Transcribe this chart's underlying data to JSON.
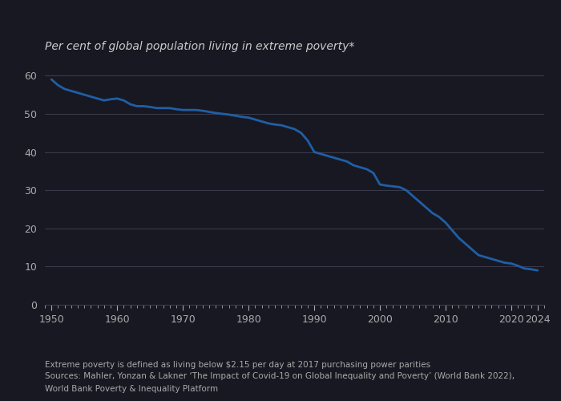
{
  "title": "Per cent of global population living in extreme poverty*",
  "ylim": [
    0,
    63
  ],
  "yticks": [
    0,
    10,
    20,
    30,
    40,
    50,
    60
  ],
  "xlim": [
    1949,
    2025
  ],
  "xticks": [
    1950,
    1960,
    1970,
    1980,
    1990,
    2000,
    2010,
    2020,
    2024
  ],
  "xtick_labels": [
    "1950",
    "1960",
    "1970",
    "1980",
    "1990",
    "2000",
    "2010",
    "2020",
    "2024"
  ],
  "line_color": "#1f5fa6",
  "line_width": 2.0,
  "background_color": "#181822",
  "grid_color": "#3a3a4a",
  "text_color": "#aaaaaa",
  "title_color": "#cccccc",
  "title_fontsize": 10,
  "footnote_fontsize": 7.5,
  "footnote1": "Extreme poverty is defined as living below $2.15 per day at 2017 purchasing power parities",
  "footnote2": "Sources: Mahler, Yonzan & Lakner ‘The Impact of Covid-19 on Global Inequality and Poverty’ (World Bank 2022),",
  "footnote3": "World Bank Poverty & Inequality Platform",
  "years": [
    1950,
    1951,
    1952,
    1953,
    1954,
    1955,
    1956,
    1957,
    1958,
    1959,
    1960,
    1961,
    1962,
    1963,
    1964,
    1965,
    1966,
    1967,
    1968,
    1969,
    1970,
    1971,
    1972,
    1973,
    1974,
    1975,
    1976,
    1977,
    1978,
    1979,
    1980,
    1981,
    1982,
    1983,
    1984,
    1985,
    1986,
    1987,
    1988,
    1989,
    1990,
    1991,
    1992,
    1993,
    1994,
    1995,
    1996,
    1997,
    1998,
    1999,
    2000,
    2001,
    2002,
    2003,
    2004,
    2005,
    2006,
    2007,
    2008,
    2009,
    2010,
    2011,
    2012,
    2013,
    2014,
    2015,
    2016,
    2017,
    2018,
    2019,
    2020,
    2021,
    2022,
    2023,
    2024
  ],
  "values": [
    59.0,
    57.5,
    56.5,
    56.0,
    55.5,
    55.0,
    54.5,
    54.0,
    53.5,
    53.8,
    54.0,
    53.5,
    52.5,
    52.0,
    52.0,
    51.8,
    51.5,
    51.5,
    51.5,
    51.2,
    51.0,
    51.0,
    51.0,
    50.8,
    50.5,
    50.2,
    50.0,
    49.8,
    49.5,
    49.2,
    49.0,
    48.5,
    48.0,
    47.5,
    47.2,
    47.0,
    46.5,
    46.0,
    45.0,
    43.0,
    40.0,
    39.5,
    39.0,
    38.5,
    38.0,
    37.5,
    36.5,
    36.0,
    35.5,
    34.5,
    31.5,
    31.2,
    31.0,
    30.8,
    30.0,
    28.5,
    27.0,
    25.5,
    24.0,
    23.0,
    21.5,
    19.5,
    17.5,
    16.0,
    14.5,
    13.0,
    12.5,
    12.0,
    11.5,
    11.0,
    10.8,
    10.2,
    9.5,
    9.3,
    9.0
  ]
}
